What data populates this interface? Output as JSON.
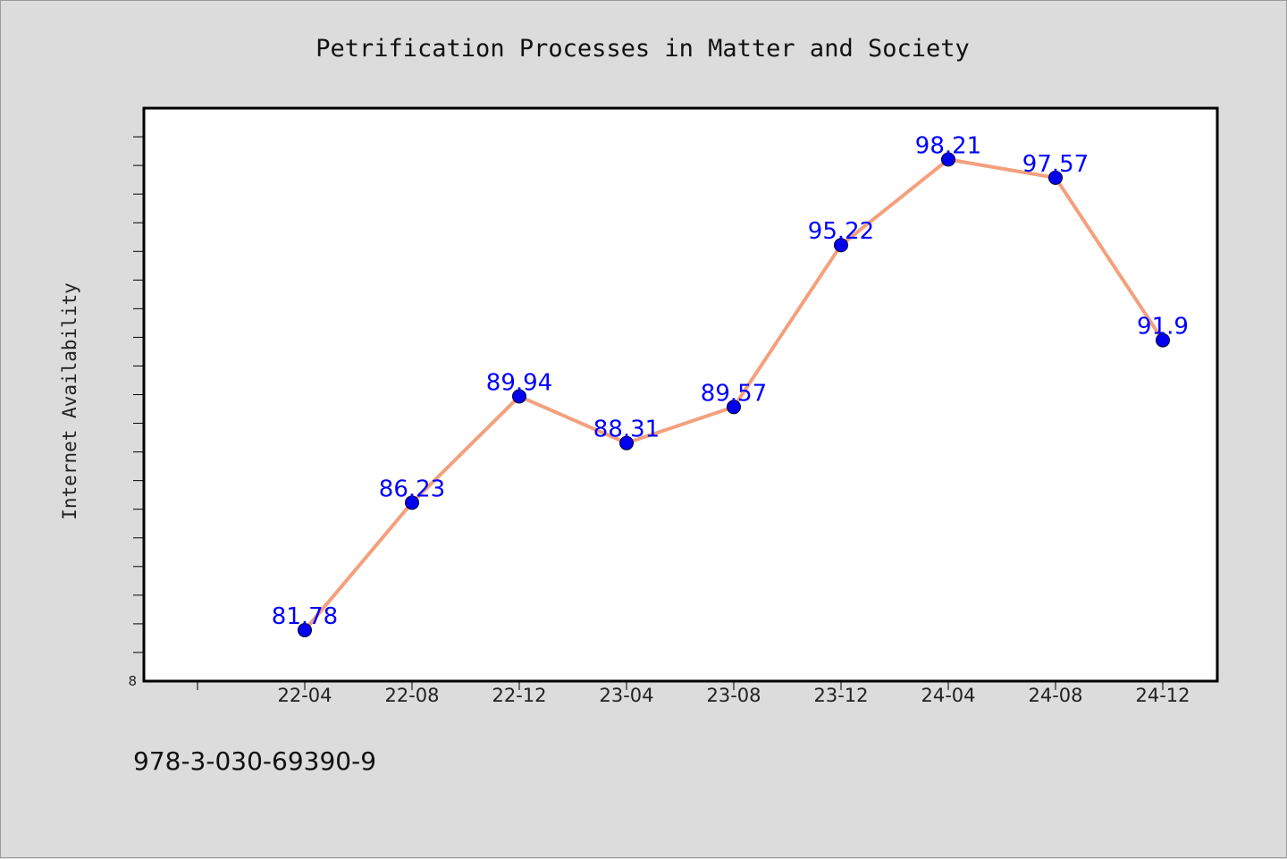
{
  "chart_data": {
    "type": "line",
    "title": "Petrification Processes in Matter and Society",
    "ylabel": "Internet Availability",
    "xlabel": "",
    "categories": [
      "22-04",
      "22-08",
      "22-12",
      "23-04",
      "23-08",
      "23-12",
      "24-04",
      "24-08",
      "24-12"
    ],
    "series": [
      {
        "values": [
          81.78,
          86.23,
          89.94,
          88.31,
          89.57,
          95.22,
          98.21,
          97.57,
          91.9
        ],
        "labels": [
          "81.78",
          "86.23",
          "89.94",
          "88.31",
          "89.57",
          "95.22",
          "98.21",
          "97.57",
          "91.9"
        ]
      }
    ],
    "y_tick_label": "8",
    "ylim": [
      80,
      100
    ],
    "grid": false,
    "legend": "none",
    "colors": {
      "line": "#f4a07e",
      "marker": "#0000ee",
      "data_label": "#0000ff",
      "background": "#dcdcdc",
      "plot_background": "#ffffff"
    }
  },
  "footer": {
    "code": "978-3-030-69390-9"
  }
}
